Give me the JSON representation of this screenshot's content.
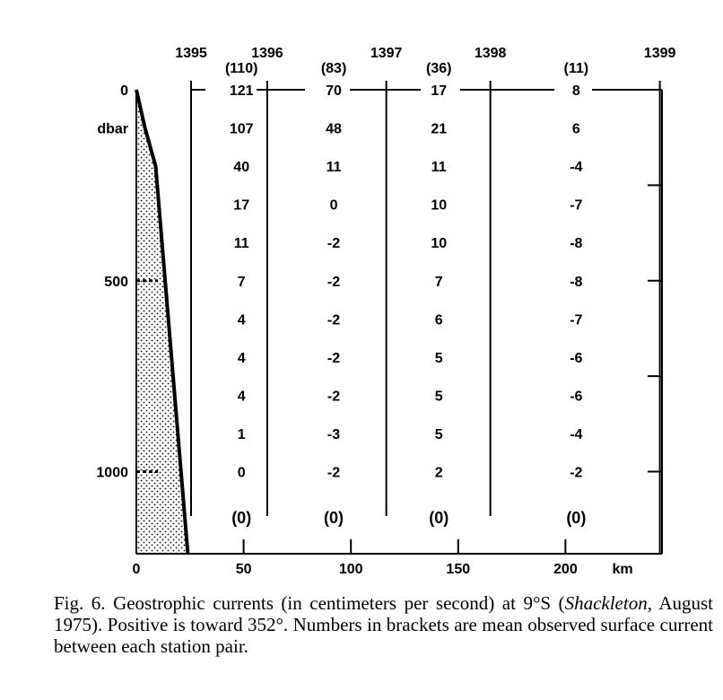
{
  "chart_data": {
    "type": "table",
    "x_axis": {
      "unit_label": "km",
      "range": [
        0,
        245
      ],
      "ticks": [
        0,
        50,
        100,
        150,
        200
      ],
      "tick_labels": [
        "0",
        "50",
        "100",
        "150",
        "200"
      ]
    },
    "y_axis": {
      "unit_label": "dbar",
      "range": [
        0,
        1215
      ],
      "labeled_ticks": [
        0,
        500,
        1000
      ],
      "tick_labels": [
        "0",
        "500",
        "1000"
      ]
    },
    "stations": [
      {
        "name": "1395",
        "km": 25.5
      },
      {
        "name": "1396",
        "km": 61
      },
      {
        "name": "1397",
        "km": 116.5
      },
      {
        "name": "1398",
        "km": 165
      },
      {
        "name": "1399",
        "km": 244
      }
    ],
    "bottom_profile": [
      [
        0,
        0
      ],
      [
        4,
        100
      ],
      [
        9,
        200
      ],
      [
        24,
        1215
      ]
    ],
    "depths": [
      0,
      100,
      200,
      300,
      400,
      500,
      600,
      700,
      800,
      900,
      1000
    ],
    "columns": [
      {
        "km": 49,
        "surface_bracket": "(110)",
        "values": [
          "121",
          "107",
          "40",
          "17",
          "11",
          "7",
          "4",
          "4",
          "4",
          "1",
          "0"
        ],
        "observed": "(0)"
      },
      {
        "km": 92,
        "surface_bracket": "(83)",
        "values": [
          "70",
          "48",
          "11",
          "0",
          "-2",
          "-2",
          "-2",
          "-2",
          "-2",
          "-3",
          "-2"
        ],
        "observed": "(0)"
      },
      {
        "km": 141,
        "surface_bracket": "(36)",
        "values": [
          "17",
          "21",
          "11",
          "10",
          "10",
          "7",
          "6",
          "5",
          "5",
          "5",
          "2"
        ],
        "observed": "(0)"
      },
      {
        "km": 205,
        "surface_bracket": "(11)",
        "values": [
          "8",
          "6",
          "-4",
          "-7",
          "-8",
          "-8",
          "-7",
          "-6",
          "-6",
          "-4",
          "-2"
        ],
        "observed": "(0)"
      }
    ]
  },
  "caption": {
    "part1": "Fig. 6.   Geostrophic currents (in centimeters per second) at 9°S (",
    "italic": "Shackleton",
    "part2": ", August 1975). Positive is toward 352°. Numbers in brackets are mean observed surface current between each station pair."
  }
}
